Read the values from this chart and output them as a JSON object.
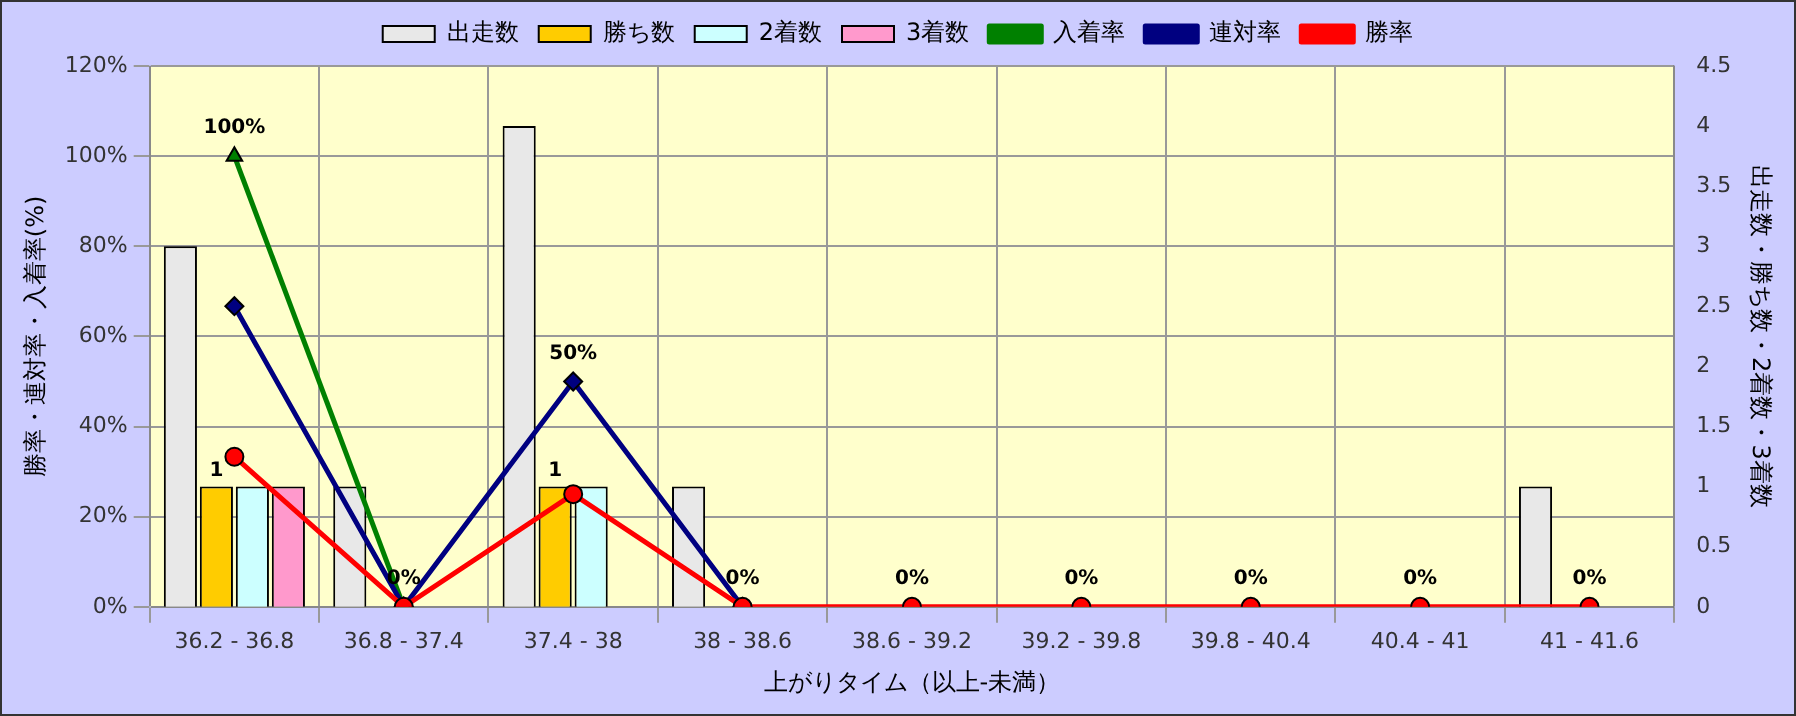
{
  "chart_data": {
    "type": "bar",
    "xlabel": "上がりタイム（以上-未満）",
    "ylabel": "勝率・連対率・入着率(%)",
    "y2label": "出走数・勝ち数・2着数・3着数",
    "categories": [
      "36.2 - 36.8",
      "36.8 - 37.4",
      "37.4 - 38",
      "38 - 38.6",
      "38.6 - 39.2",
      "39.2 - 39.8",
      "39.8 - 40.4",
      "40.4 - 41",
      "41 - 41.6"
    ],
    "series": [
      {
        "name": "出走数",
        "axis": "y2",
        "color": "#e8e8e8",
        "values": [
          3,
          1,
          4,
          1,
          0,
          0,
          0,
          0,
          1
        ]
      },
      {
        "name": "勝ち数",
        "axis": "y2",
        "color": "#ffcc00",
        "values": [
          1,
          0,
          1,
          0,
          0,
          0,
          0,
          0,
          0
        ],
        "value_labels": [
          "1",
          null,
          "1",
          null,
          null,
          null,
          null,
          null,
          null
        ]
      },
      {
        "name": "2着数",
        "axis": "y2",
        "color": "#ccffff",
        "values": [
          1,
          0,
          1,
          0,
          0,
          0,
          0,
          0,
          0
        ]
      },
      {
        "name": "3着数",
        "axis": "y2",
        "color": "#ff99cc",
        "values": [
          1,
          0,
          0,
          0,
          0,
          0,
          0,
          0,
          0
        ]
      },
      {
        "name": "入着率",
        "type": "line",
        "color": "#008000",
        "marker": "triangle",
        "values": [
          100,
          0,
          null,
          null,
          null,
          null,
          null,
          null,
          null
        ],
        "value_labels": [
          "100%",
          "0%",
          null,
          null,
          null,
          null,
          null,
          null,
          null
        ]
      },
      {
        "name": "連対率",
        "type": "line",
        "color": "#000080",
        "marker": "diamond",
        "values": [
          66.7,
          0,
          50,
          0,
          null,
          null,
          null,
          null,
          null
        ],
        "value_labels": [
          null,
          null,
          "50%",
          null,
          null,
          null,
          null,
          null,
          null
        ]
      },
      {
        "name": "勝率",
        "type": "line",
        "color": "#ff0000",
        "marker": "circle",
        "values": [
          33.3,
          0,
          25,
          0,
          0,
          0,
          0,
          0,
          0
        ],
        "value_labels": [
          null,
          null,
          null,
          "0%",
          "0%",
          "0%",
          "0%",
          "0%",
          "0%"
        ]
      }
    ],
    "ylim": [
      0,
      120
    ],
    "yticks": [
      {
        "value": 0,
        "label": "0%"
      },
      {
        "value": 20,
        "label": "20%"
      },
      {
        "value": 40,
        "label": "40%"
      },
      {
        "value": 60,
        "label": "60%"
      },
      {
        "value": 80,
        "label": "80%"
      },
      {
        "value": 100,
        "label": "100%"
      },
      {
        "value": 120,
        "label": "120%"
      }
    ],
    "y2lim": [
      0,
      4.5
    ],
    "y2ticks": [
      0,
      0.5,
      1,
      1.5,
      2,
      2.5,
      3,
      3.5,
      4,
      4.5
    ],
    "grid": true,
    "legend": "top"
  }
}
